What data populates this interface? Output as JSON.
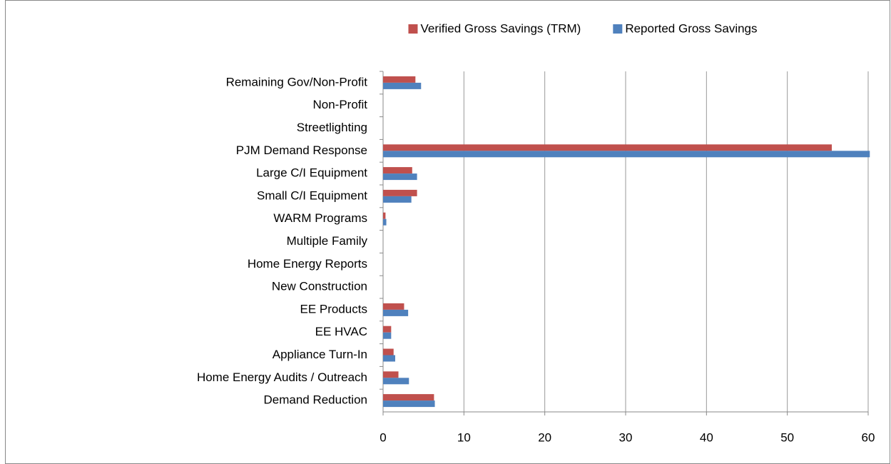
{
  "chart_data": {
    "type": "bar",
    "orientation": "horizontal",
    "categories": [
      "Remaining Gov/Non-Profit",
      "Non-Profit",
      "Streetlighting",
      "PJM Demand Response",
      "Large  C/I Equipment",
      "Small C/I Equipment",
      "WARM Programs",
      "Multiple Family",
      "Home Energy Reports",
      "New Construction",
      "EE Products",
      "EE HVAC",
      "Appliance Turn-In",
      "Home Energy Audits / Outreach",
      "Demand Reduction"
    ],
    "series": [
      {
        "name": "Verified Gross Savings (TRM)",
        "color": "#c0504d",
        "values": [
          4.0,
          0,
          0,
          55.5,
          3.6,
          4.2,
          0.3,
          0,
          0,
          0,
          2.6,
          1.0,
          1.3,
          1.9,
          6.3
        ]
      },
      {
        "name": "Reported Gross Savings",
        "color": "#4f81bd",
        "values": [
          4.7,
          0,
          0,
          60.2,
          4.2,
          3.5,
          0.4,
          0,
          0,
          0,
          3.1,
          1.0,
          1.5,
          3.2,
          6.4
        ]
      }
    ],
    "xlim": [
      0,
      60
    ],
    "xticks": [
      0,
      10,
      20,
      30,
      40,
      50,
      60
    ],
    "grid": true,
    "legend": "top"
  }
}
